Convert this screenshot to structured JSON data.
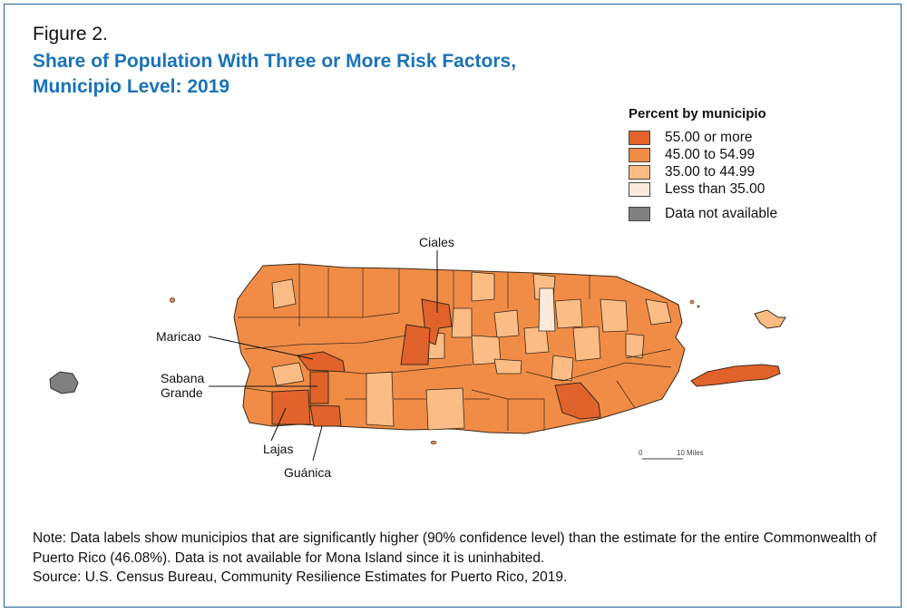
{
  "figure": {
    "label": "Figure 2.",
    "title_line1": "Share of Population With Three or More Risk Factors,",
    "title_line2": "Municipio Level: 2019"
  },
  "legend": {
    "title": "Percent by municipio",
    "items": [
      {
        "label": "55.00 or more",
        "color": "#e1622a"
      },
      {
        "label": "45.00 to 54.99",
        "color": "#f08c46"
      },
      {
        "label": "35.00 to 44.99",
        "color": "#fbbd85"
      },
      {
        "label": "Less than 35.00",
        "color": "#fde9dc"
      },
      {
        "label": "Data not available",
        "color": "#808080"
      }
    ]
  },
  "map_labels": {
    "ciales": "Ciales",
    "maricao": "Maricao",
    "sabana_grande_1": "Sabana",
    "sabana_grande_2": "Grande",
    "lajas": "Lajas",
    "guanica": "Guánica"
  },
  "scale": {
    "zero": "0",
    "ten": "10",
    "unit": "Miles"
  },
  "note": "Note: Data labels show municipios that are significantly higher (90% confidence level) than the estimate for the entire Commonwealth of Puerto Rico (46.08%). Data is not available for Mona Island since it is uninhabited.",
  "source": "Source: U.S. Census Bureau, Community Resilience Estimates for Puerto Rico, 2019."
}
